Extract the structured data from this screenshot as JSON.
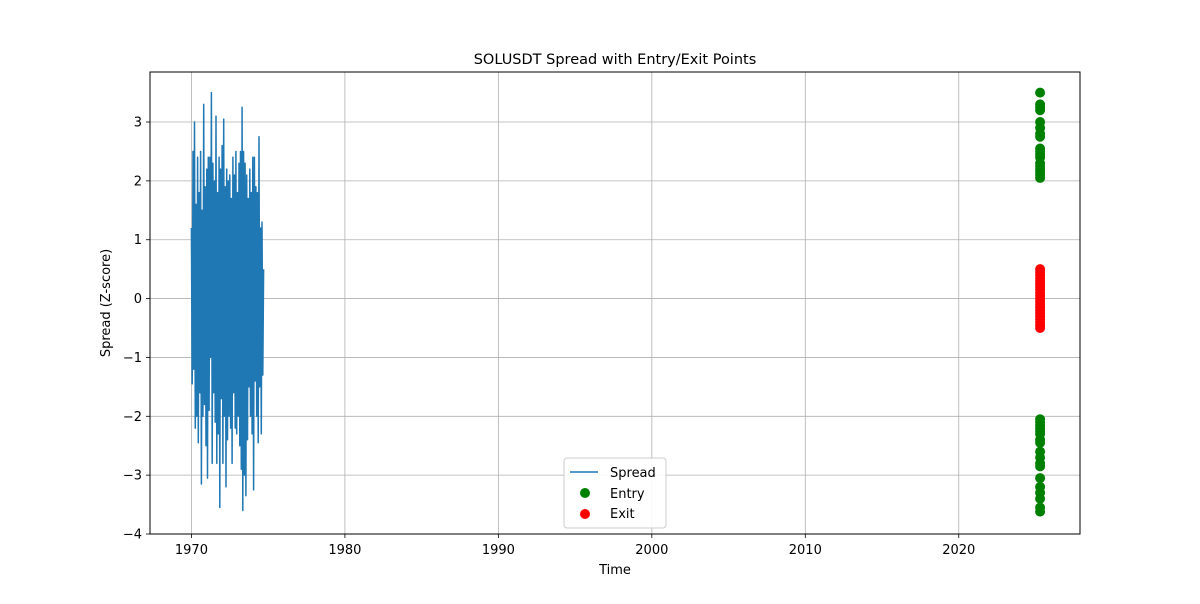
{
  "chart_data": {
    "type": "line",
    "title": "SOLUSDT Spread with Entry/Exit Points",
    "xlabel": "Time",
    "ylabel": "Spread (Z-score)",
    "xlim": [
      1967.3,
      2027.9
    ],
    "ylim": [
      -4.0,
      3.85
    ],
    "x_ticks": [
      {
        "value": 1970,
        "label": "1970"
      },
      {
        "value": 1980,
        "label": "1980"
      },
      {
        "value": 1990,
        "label": "1990"
      },
      {
        "value": 2000,
        "label": "2000"
      },
      {
        "value": 2010,
        "label": "2010"
      },
      {
        "value": 2020,
        "label": "2020"
      }
    ],
    "y_ticks": [
      {
        "value": -4,
        "label": "−4"
      },
      {
        "value": -3,
        "label": "−3"
      },
      {
        "value": -2,
        "label": "−2"
      },
      {
        "value": -1,
        "label": "−1"
      },
      {
        "value": 0,
        "label": "0"
      },
      {
        "value": 1,
        "label": "1"
      },
      {
        "value": 2,
        "label": "2"
      },
      {
        "value": 3,
        "label": "3"
      }
    ],
    "grid": true,
    "legend": {
      "position": "lower-center",
      "entries": [
        {
          "name": "Spread",
          "kind": "line",
          "color": "#1f77b4"
        },
        {
          "name": "Entry",
          "kind": "marker",
          "color": "#008000"
        },
        {
          "name": "Exit",
          "kind": "marker",
          "color": "#ff0000"
        }
      ]
    },
    "series": [
      {
        "name": "Spread",
        "kind": "line",
        "color": "#1f77b4",
        "x_range": [
          1970.0,
          1974.7
        ],
        "points": [
          [
            1970.0,
            1.2
          ],
          [
            1970.05,
            -1.45
          ],
          [
            1970.1,
            2.5
          ],
          [
            1970.15,
            -1.2
          ],
          [
            1970.2,
            3.0
          ],
          [
            1970.25,
            -2.2
          ],
          [
            1970.3,
            1.6
          ],
          [
            1970.35,
            -2.0
          ],
          [
            1970.4,
            2.4
          ],
          [
            1970.45,
            -2.45
          ],
          [
            1970.5,
            1.8
          ],
          [
            1970.55,
            -1.6
          ],
          [
            1970.6,
            2.5
          ],
          [
            1970.65,
            -3.15
          ],
          [
            1970.7,
            1.5
          ],
          [
            1970.75,
            -2.0
          ],
          [
            1970.8,
            3.3
          ],
          [
            1970.85,
            -1.8
          ],
          [
            1970.9,
            1.9
          ],
          [
            1970.95,
            -2.5
          ],
          [
            1971.0,
            2.2
          ],
          [
            1971.05,
            -3.05
          ],
          [
            1971.1,
            2.4
          ],
          [
            1971.15,
            -1.9
          ],
          [
            1971.2,
            2.4
          ],
          [
            1971.25,
            -1.0
          ],
          [
            1971.3,
            3.5
          ],
          [
            1971.35,
            -2.8
          ],
          [
            1971.4,
            2.3
          ],
          [
            1971.45,
            -1.6
          ],
          [
            1971.5,
            2.0
          ],
          [
            1971.55,
            -2.1
          ],
          [
            1971.6,
            3.1
          ],
          [
            1971.65,
            -2.8
          ],
          [
            1971.7,
            1.8
          ],
          [
            1971.75,
            -2.3
          ],
          [
            1971.8,
            2.4
          ],
          [
            1971.85,
            -3.55
          ],
          [
            1971.9,
            2.2
          ],
          [
            1971.95,
            -1.7
          ],
          [
            1972.0,
            2.6
          ],
          [
            1972.05,
            -2.8
          ],
          [
            1972.1,
            3.05
          ],
          [
            1972.15,
            -2.0
          ],
          [
            1972.2,
            1.9
          ],
          [
            1972.25,
            -3.2
          ],
          [
            1972.3,
            2.2
          ],
          [
            1972.35,
            -2.4
          ],
          [
            1972.4,
            2.0
          ],
          [
            1972.45,
            -2.0
          ],
          [
            1972.5,
            2.1
          ],
          [
            1972.55,
            -2.2
          ],
          [
            1972.6,
            1.7
          ],
          [
            1972.65,
            -2.8
          ],
          [
            1972.7,
            2.4
          ],
          [
            1972.75,
            -1.6
          ],
          [
            1972.8,
            2.1
          ],
          [
            1972.85,
            -2.2
          ],
          [
            1972.9,
            2.5
          ],
          [
            1972.95,
            -2.3
          ],
          [
            1973.0,
            1.8
          ],
          [
            1973.05,
            -2.0
          ],
          [
            1973.1,
            2.3
          ],
          [
            1973.15,
            -2.5
          ],
          [
            1973.2,
            2.5
          ],
          [
            1973.25,
            -2.9
          ],
          [
            1973.3,
            3.25
          ],
          [
            1973.35,
            -3.6
          ],
          [
            1973.4,
            2.5
          ],
          [
            1973.45,
            -3.0
          ],
          [
            1973.5,
            2.3
          ],
          [
            1973.55,
            -3.35
          ],
          [
            1973.6,
            2.1
          ],
          [
            1973.65,
            -2.4
          ],
          [
            1973.7,
            1.7
          ],
          [
            1973.75,
            -1.5
          ],
          [
            1973.8,
            2.2
          ],
          [
            1973.85,
            -2.0
          ],
          [
            1973.9,
            1.8
          ],
          [
            1973.95,
            -2.3
          ],
          [
            1974.0,
            2.4
          ],
          [
            1974.05,
            -3.25
          ],
          [
            1974.1,
            2.4
          ],
          [
            1974.15,
            -1.4
          ],
          [
            1974.2,
            1.9
          ],
          [
            1974.25,
            -2.0
          ],
          [
            1974.3,
            1.8
          ],
          [
            1974.35,
            -2.45
          ],
          [
            1974.4,
            2.75
          ],
          [
            1974.45,
            -1.5
          ],
          [
            1974.5,
            1.2
          ],
          [
            1974.55,
            -2.3
          ],
          [
            1974.6,
            1.3
          ],
          [
            1974.65,
            -1.3
          ],
          [
            1974.7,
            0.5
          ]
        ]
      },
      {
        "name": "Entry",
        "kind": "scatter",
        "color": "#008000",
        "x": 2025.3,
        "y_values": [
          3.5,
          3.3,
          3.25,
          3.2,
          3.0,
          2.9,
          2.8,
          2.75,
          2.55,
          2.5,
          2.45,
          2.4,
          2.3,
          2.25,
          2.2,
          2.15,
          2.1,
          2.05,
          -2.05,
          -2.1,
          -2.15,
          -2.2,
          -2.25,
          -2.3,
          -2.4,
          -2.45,
          -2.6,
          -2.7,
          -2.8,
          -2.85,
          -3.05,
          -3.2,
          -3.3,
          -3.4,
          -3.55,
          -3.62
        ]
      },
      {
        "name": "Exit",
        "kind": "scatter",
        "color": "#ff0000",
        "x": 2025.3,
        "y_values": [
          0.5,
          0.45,
          0.4,
          0.35,
          0.3,
          0.25,
          0.2,
          0.15,
          0.1,
          0.05,
          0.0,
          -0.05,
          -0.1,
          -0.15,
          -0.2,
          -0.25,
          -0.3,
          -0.35,
          -0.4,
          -0.45,
          -0.5
        ]
      }
    ]
  }
}
